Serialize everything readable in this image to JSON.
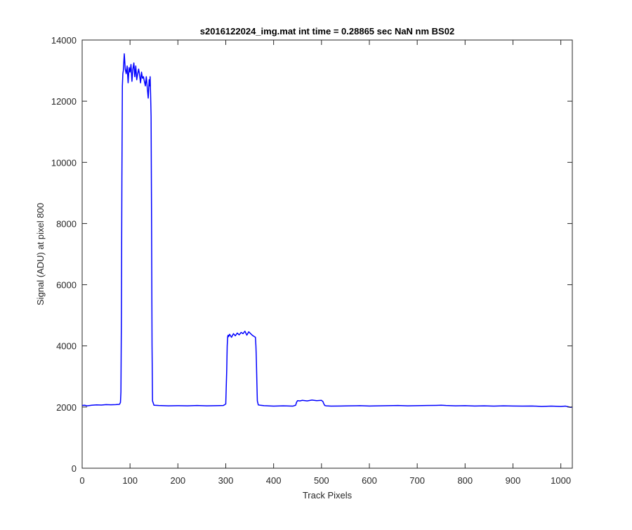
{
  "chart_data": {
    "type": "line",
    "title": "s2016122024_img.mat int time = 0.28865 sec  NaN nm BS02",
    "xlabel": "Track Pixels",
    "ylabel": "Signal (ADU) at pixel 800",
    "xlim": [
      0,
      1024
    ],
    "ylim": [
      0,
      14000
    ],
    "xticks": [
      0,
      100,
      200,
      300,
      400,
      500,
      600,
      700,
      800,
      900,
      1000
    ],
    "yticks": [
      0,
      2000,
      4000,
      6000,
      8000,
      10000,
      12000,
      14000
    ],
    "grid": false,
    "legend": "none",
    "series": [
      {
        "color": "#0000ff",
        "x": [
          0,
          5,
          10,
          20,
          30,
          40,
          50,
          60,
          70,
          78,
          80,
          81,
          82,
          83,
          84,
          85,
          86,
          88,
          90,
          92,
          94,
          96,
          98,
          100,
          102,
          104,
          106,
          108,
          110,
          112,
          114,
          116,
          118,
          120,
          122,
          124,
          126,
          128,
          130,
          132,
          134,
          136,
          138,
          140,
          141,
          142,
          143,
          144,
          145,
          146,
          147,
          150,
          160,
          180,
          200,
          220,
          240,
          260,
          280,
          295,
          300,
          302,
          303,
          304,
          305,
          306,
          308,
          312,
          316,
          320,
          324,
          328,
          332,
          336,
          340,
          344,
          348,
          352,
          356,
          360,
          362,
          363,
          364,
          365,
          366,
          368,
          372,
          380,
          400,
          420,
          440,
          446,
          448,
          450,
          455,
          460,
          470,
          480,
          490,
          500,
          503,
          505,
          507,
          510,
          520,
          540,
          560,
          580,
          600,
          620,
          640,
          660,
          680,
          700,
          720,
          740,
          750,
          760,
          780,
          800,
          820,
          840,
          860,
          880,
          900,
          920,
          940,
          960,
          980,
          1000,
          1010,
          1018,
          1020,
          1024
        ],
        "y": [
          2050,
          2060,
          2040,
          2060,
          2070,
          2065,
          2080,
          2075,
          2080,
          2090,
          2150,
          2500,
          5000,
          9500,
          12500,
          12900,
          13000,
          13550,
          13050,
          12900,
          13150,
          12600,
          13100,
          12950,
          13200,
          12650,
          13050,
          13250,
          12800,
          13150,
          12700,
          12900,
          13050,
          12850,
          12600,
          12950,
          12750,
          12800,
          12650,
          12500,
          12800,
          12450,
          12100,
          12700,
          12500,
          12800,
          12200,
          11500,
          8000,
          4000,
          2200,
          2060,
          2050,
          2040,
          2045,
          2040,
          2050,
          2040,
          2045,
          2050,
          2100,
          3200,
          4000,
          4300,
          4350,
          4300,
          4380,
          4280,
          4400,
          4330,
          4420,
          4360,
          4440,
          4400,
          4480,
          4350,
          4460,
          4400,
          4340,
          4300,
          4280,
          4000,
          3500,
          2800,
          2200,
          2070,
          2060,
          2045,
          2030,
          2040,
          2030,
          2060,
          2160,
          2210,
          2200,
          2220,
          2200,
          2230,
          2210,
          2220,
          2180,
          2100,
          2050,
          2040,
          2030,
          2035,
          2040,
          2045,
          2035,
          2040,
          2045,
          2050,
          2040,
          2045,
          2050,
          2055,
          2060,
          2050,
          2040,
          2045,
          2035,
          2040,
          2030,
          2040,
          2035,
          2030,
          2035,
          2020,
          2030,
          2020,
          2030,
          2000,
          1990,
          2000
        ]
      }
    ]
  }
}
